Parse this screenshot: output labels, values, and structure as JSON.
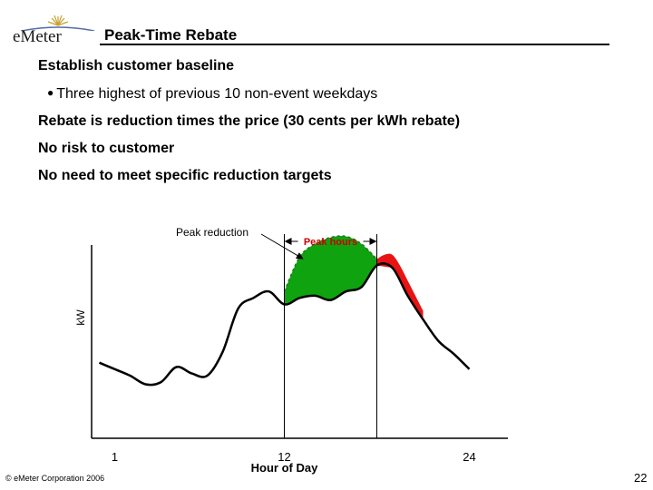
{
  "header": {
    "logo_text": "eMeter",
    "title": "Peak-Time Rebate"
  },
  "bullets": [
    "Establish customer baseline",
    "Rebate is reduction times the price (30 cents per kWh rebate)",
    "No risk to customer",
    "No need to meet specific reduction targets"
  ],
  "sub_bullet": "Three highest of previous 10 non-event weekdays",
  "footer": {
    "copyright": "© eMeter Corporation 2006",
    "page_number": "22"
  },
  "colors": {
    "reduction_fill": "#0fa30f",
    "excess_fill": "#e81414",
    "curve": "#000000",
    "annotation_red": "#cc0000"
  },
  "chart_data": {
    "type": "area",
    "xlabel": "Hour of Day",
    "ylabel": "kW",
    "x_ticks": [
      {
        "value": 1,
        "label": "1"
      },
      {
        "value": 12,
        "label": "12"
      },
      {
        "value": 24,
        "label": "24"
      }
    ],
    "xlim": [
      -0.5,
      26.5
    ],
    "ylim": [
      0,
      10
    ],
    "peak_window": {
      "start": 12,
      "end": 18,
      "label": "Peak hours"
    },
    "annotations": [
      {
        "text": "Peak reduction",
        "points_to": "reduction-area"
      }
    ],
    "series": [
      {
        "x": [
          0,
          1,
          2,
          3,
          4,
          5,
          6,
          7,
          8,
          9,
          10,
          11,
          12,
          13,
          14,
          15,
          16,
          17,
          18,
          19,
          20,
          21,
          22,
          23,
          24
        ],
        "values": [
          3.5,
          3.2,
          2.9,
          2.5,
          2.6,
          3.3,
          3.0,
          2.9,
          4.0,
          6.0,
          6.5,
          6.8,
          6.2,
          6.5,
          6.6,
          6.4,
          6.8,
          7.0,
          8.0,
          7.9,
          6.6,
          5.5,
          4.5,
          3.9,
          3.2
        ]
      },
      {
        "x": [
          12,
          13,
          14,
          15,
          16,
          17,
          18
        ],
        "values": [
          6.8,
          8.4,
          9.0,
          9.3,
          9.35,
          9.0,
          8.3
        ]
      },
      {
        "x": [
          18,
          18.5,
          19,
          19.5,
          20,
          20.5,
          21
        ],
        "values": [
          8.3,
          8.5,
          8.5,
          8.0,
          7.3,
          6.6,
          5.9
        ]
      }
    ]
  }
}
